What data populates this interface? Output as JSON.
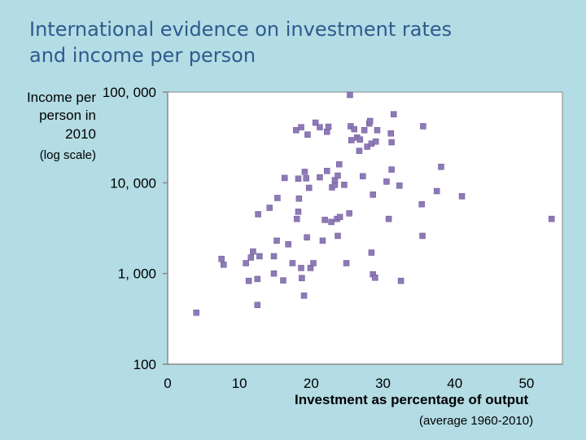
{
  "slide": {
    "title_line1": "International evidence on investment rates",
    "title_line2": "and income per person"
  },
  "chart_data": {
    "type": "scatter",
    "title": "",
    "ylabel_lines": [
      "Income per",
      "person in",
      "2010",
      "(log scale)"
    ],
    "xlabel": "Investment as percentage of output",
    "xlabel_note": "(average 1960-2010)",
    "xlim": [
      0,
      55
    ],
    "ylim": [
      100,
      100000
    ],
    "yscale": "log",
    "x_ticks": [
      0,
      10,
      20,
      30,
      40,
      50
    ],
    "x_tick_labels": [
      "0",
      "10",
      "20",
      "30",
      "40",
      "50"
    ],
    "y_ticks": [
      100,
      1000,
      10000,
      100000
    ],
    "y_tick_labels": [
      "100",
      "1, 000",
      "10, 000",
      "100, 000"
    ],
    "grid": false,
    "marker_color": "#8e79b6",
    "points": [
      [
        4.0,
        370
      ],
      [
        7.5,
        1450
      ],
      [
        7.8,
        1250
      ],
      [
        10.9,
        1300
      ],
      [
        11.6,
        1500
      ],
      [
        11.9,
        1750
      ],
      [
        11.3,
        830
      ],
      [
        12.5,
        870
      ],
      [
        12.5,
        450
      ],
      [
        12.8,
        1550
      ],
      [
        12.6,
        4500
      ],
      [
        14.2,
        5300
      ],
      [
        14.8,
        1550
      ],
      [
        14.8,
        1000
      ],
      [
        15.2,
        2300
      ],
      [
        15.3,
        6800
      ],
      [
        16.1,
        840
      ],
      [
        16.3,
        11300
      ],
      [
        16.8,
        2100
      ],
      [
        17.4,
        1300
      ],
      [
        18.2,
        11100
      ],
      [
        18.3,
        6700
      ],
      [
        18.0,
        4000
      ],
      [
        18.2,
        4800
      ],
      [
        18.6,
        1150
      ],
      [
        18.7,
        890
      ],
      [
        19.0,
        570
      ],
      [
        19.1,
        13200
      ],
      [
        19.4,
        2500
      ],
      [
        19.3,
        11200
      ],
      [
        19.7,
        8800
      ],
      [
        19.9,
        1150
      ],
      [
        20.3,
        1300
      ],
      [
        17.9,
        38000
      ],
      [
        18.6,
        41000
      ],
      [
        19.5,
        34000
      ],
      [
        20.6,
        46000
      ],
      [
        21.2,
        41000
      ],
      [
        21.2,
        11500
      ],
      [
        21.6,
        2300
      ],
      [
        21.9,
        3900
      ],
      [
        22.2,
        13500
      ],
      [
        22.2,
        36500
      ],
      [
        22.4,
        41500
      ],
      [
        22.8,
        3700
      ],
      [
        22.9,
        8900
      ],
      [
        23.3,
        9500
      ],
      [
        23.3,
        10700
      ],
      [
        23.7,
        2600
      ],
      [
        23.7,
        12000
      ],
      [
        23.9,
        16000
      ],
      [
        23.6,
        4000
      ],
      [
        24.0,
        4200
      ],
      [
        24.6,
        9500
      ],
      [
        24.9,
        1300
      ],
      [
        25.3,
        4600
      ],
      [
        25.4,
        93000
      ],
      [
        25.5,
        42000
      ],
      [
        25.6,
        29500
      ],
      [
        26.0,
        39000
      ],
      [
        26.4,
        31500
      ],
      [
        26.8,
        30000
      ],
      [
        26.7,
        22500
      ],
      [
        27.2,
        11800
      ],
      [
        27.4,
        38000
      ],
      [
        27.8,
        25000
      ],
      [
        28.1,
        45000
      ],
      [
        28.2,
        48000
      ],
      [
        28.4,
        27000
      ],
      [
        28.4,
        1700
      ],
      [
        28.6,
        7400
      ],
      [
        28.6,
        980
      ],
      [
        28.9,
        900
      ],
      [
        29.0,
        28500
      ],
      [
        29.2,
        38000
      ],
      [
        30.5,
        10300
      ],
      [
        30.8,
        4000
      ],
      [
        31.1,
        35000
      ],
      [
        31.2,
        28000
      ],
      [
        31.2,
        14000
      ],
      [
        31.5,
        57000
      ],
      [
        32.3,
        9300
      ],
      [
        32.5,
        830
      ],
      [
        35.4,
        5800
      ],
      [
        35.5,
        2600
      ],
      [
        35.6,
        42000
      ],
      [
        37.5,
        8100
      ],
      [
        38.1,
        15000
      ],
      [
        41.0,
        7100
      ],
      [
        53.5,
        4000
      ]
    ]
  }
}
